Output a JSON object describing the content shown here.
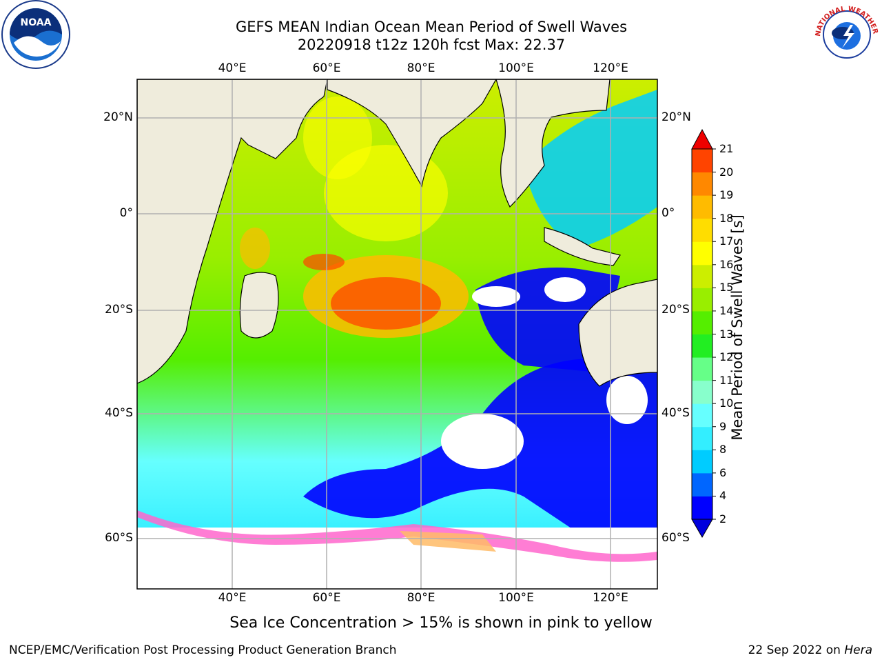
{
  "title": {
    "line1": "GEFS MEAN Indian Ocean Mean Period of Swell Waves",
    "line2": "20220918 t12z 120h fcst   Max: 22.37"
  },
  "map": {
    "lon_ticks": [
      "40°E",
      "60°E",
      "80°E",
      "100°E",
      "120°E"
    ],
    "lat_ticks": [
      "20°N",
      "0°",
      "20°S",
      "40°S",
      "60°S"
    ],
    "lon_range": [
      20,
      130
    ],
    "lat_range": [
      -70,
      28
    ],
    "land_color": "#efecdc",
    "grid_color": "#b0b0b0"
  },
  "colorbar": {
    "label": "Mean Period of Swell Waves [s]",
    "ticks": [
      "2",
      "4",
      "6",
      "8",
      "9",
      "10",
      "11",
      "12",
      "13",
      "14",
      "15",
      "16",
      "17",
      "18",
      "19",
      "20",
      "21"
    ],
    "colors": [
      "#0000ff",
      "#0066ff",
      "#00ccff",
      "#33eeff",
      "#66ffff",
      "#88ffcc",
      "#66ff88",
      "#22ee22",
      "#55ee00",
      "#99ee00",
      "#ccee00",
      "#ffff00",
      "#ffdd00",
      "#ffbb00",
      "#ff8800",
      "#ff4400",
      "#ff0000"
    ],
    "under_color": "#0000dd",
    "over_color": "#ee0000"
  },
  "note": "Sea Ice Concentration > 15% is shown in pink to yellow",
  "footer": {
    "left": "NCEP/EMC/Verification Post Processing Product Generation Branch",
    "right_prefix": "22 Sep 2022 on ",
    "right_host": "Hera"
  },
  "logos": {
    "noaa_text": "NOAA",
    "nws_text": "NATIONAL WEATHER SERVICE"
  }
}
